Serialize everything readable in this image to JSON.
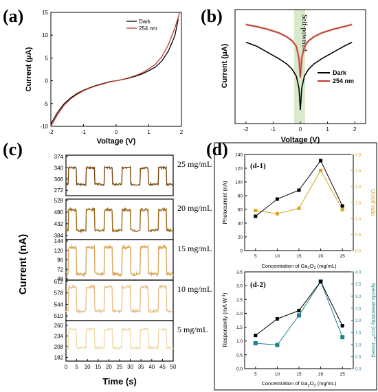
{
  "panels": {
    "a": {
      "label": "(a)",
      "xlabel": "Voltage (V)",
      "ylabel": "Current (μA)",
      "legend": [
        "Dark",
        "254 nm"
      ]
    },
    "b": {
      "label": "(b)",
      "xlabel": "Voltage (V)",
      "ylabel": "Current (μA)",
      "legend": [
        "Dark",
        "254 nm"
      ],
      "annotation": "Self-powered"
    },
    "c": {
      "label": "(c)",
      "xlabel": "Time (s)",
      "ylabel": "Current (nA)"
    },
    "d": {
      "label": "(d)"
    },
    "d1": {
      "label": "(d-1)",
      "ylabel_left": "Photocurrent (nA)",
      "ylabel_right": "On/off ratio",
      "xlabel_a": "Concentration of Ga",
      "xlabel_sub1": "2",
      "xlabel_b": "O",
      "xlabel_sub2": "3",
      "xlabel_c": " (mg/mL)"
    },
    "d2": {
      "label": "(d-2)",
      "ylabel_left_a": "Responsivity (mA W",
      "ylabel_left_sup": "-1",
      "ylabel_left_b": ")",
      "ylabel_right_a": "Specific detectivity (x10",
      "ylabel_right_sup": "10",
      "ylabel_right_b": " Jones)",
      "xlabel_a": "Concentration of Ga",
      "xlabel_sub1": "2",
      "xlabel_b": "O",
      "xlabel_sub2": "3",
      "xlabel_c": " (mg/mL)"
    }
  },
  "colors": {
    "dark": "#000000",
    "uv": "#c0392b",
    "onoff": "#d9a521",
    "detectivity": "#1e7f8f",
    "band": "#cfe3bf"
  },
  "chart_data": [
    {
      "panel": "(a)",
      "type": "line",
      "xlabel": "Voltage (V)",
      "ylabel": "Current (μA)",
      "xlim": [
        -2,
        2
      ],
      "ylim": [
        -10,
        15
      ],
      "xticks": [
        "-2",
        "-1",
        "0",
        "1",
        "2"
      ],
      "yticks": [
        "-10",
        "-5",
        "0",
        "5",
        "10",
        "15"
      ],
      "series": [
        {
          "name": "Dark",
          "x": [
            -2,
            -1.8,
            -1.6,
            -1.4,
            -1.2,
            -1,
            -0.8,
            -0.6,
            -0.4,
            -0.2,
            0,
            0.2,
            0.4,
            0.6,
            0.8,
            1,
            1.2,
            1.4,
            1.6,
            1.8,
            1.9
          ],
          "y": [
            -9.5,
            -7.0,
            -5.1,
            -3.8,
            -2.8,
            -2.1,
            -1.5,
            -1.0,
            -0.6,
            -0.2,
            0,
            0.25,
            0.6,
            1.0,
            1.5,
            2.2,
            3.0,
            4.3,
            6.5,
            9.9,
            13.5
          ]
        },
        {
          "name": "254 nm",
          "x": [
            -2,
            -1.8,
            -1.6,
            -1.4,
            -1.2,
            -1,
            -0.8,
            -0.6,
            -0.4,
            -0.2,
            0,
            0.2,
            0.4,
            0.6,
            0.8,
            1,
            1.2,
            1.4,
            1.6,
            1.8,
            1.95
          ],
          "y": [
            -10,
            -7.5,
            -5.4,
            -4.0,
            -3.0,
            -2.2,
            -1.6,
            -1.1,
            -0.7,
            -0.25,
            0,
            0.3,
            0.7,
            1.15,
            1.75,
            2.6,
            3.6,
            5.3,
            7.9,
            11.6,
            15
          ]
        }
      ]
    },
    {
      "panel": "(b)",
      "type": "line",
      "xlabel": "Voltage (V)",
      "ylabel": "Current (μA)",
      "yscale": "log",
      "xlim": [
        -2.4,
        2.4
      ],
      "xticks": [
        "-2",
        "-1",
        "0",
        "1",
        "2"
      ],
      "annotation": "Self-powered",
      "series": [
        {
          "name": "Dark",
          "x": [
            -2,
            -1.6,
            -1.2,
            -0.8,
            -0.5,
            -0.3,
            -0.15,
            -0.05,
            0,
            0.05,
            0.15,
            0.3,
            0.5,
            0.8,
            1.2,
            1.6,
            1.9
          ],
          "y": [
            -2.0,
            -2.3,
            -2.75,
            -3.2,
            -3.6,
            -4.0,
            -4.5,
            -5.4,
            -7.0,
            -5.4,
            -4.5,
            -4.0,
            -3.6,
            -3.2,
            -2.75,
            -2.3,
            -2.0
          ]
        },
        {
          "name": "254 nm",
          "x": [
            -2,
            -1.6,
            -1.2,
            -0.8,
            -0.5,
            -0.3,
            -0.15,
            -0.05,
            0,
            0.05,
            0.15,
            0.3,
            0.5,
            0.8,
            1.2,
            1.6,
            1.9
          ],
          "y": [
            -0.7,
            -0.85,
            -1.05,
            -1.3,
            -1.6,
            -1.9,
            -2.3,
            -3.2,
            -4.6,
            -3.2,
            -2.3,
            -1.9,
            -1.6,
            -1.3,
            -1.05,
            -0.85,
            -0.7
          ]
        }
      ]
    },
    {
      "panel": "(c)",
      "type": "line",
      "xlabel": "Time (s)",
      "ylabel": "Current (nA)",
      "xlim": [
        0,
        50
      ],
      "xticks": [
        "0",
        "5",
        "10",
        "15",
        "20",
        "25",
        "30",
        "35",
        "40",
        "45",
        "50"
      ],
      "strips": [
        {
          "name": "25 mg/mL",
          "ylim": [
            260,
            374
          ],
          "yticks": [
            "272",
            "306",
            "340",
            "374"
          ],
          "low": 290,
          "high": 340,
          "color": "#7a4a12"
        },
        {
          "name": "20 mg/mL",
          "ylim": [
            372,
            528
          ],
          "yticks": [
            "384",
            "432",
            "480",
            "528"
          ],
          "low": 404,
          "high": 490,
          "color": "#9a6a1c"
        },
        {
          "name": "15 mg/mL",
          "ylim": [
            48,
            144
          ],
          "yticks": [
            "48",
            "72",
            "96",
            "120",
            "144"
          ],
          "low": 60,
          "high": 128,
          "color": "#dca85e"
        },
        {
          "name": "10 mg/mL",
          "ylim": [
            500,
            612
          ],
          "yticks": [
            "510",
            "544",
            "578",
            "612"
          ],
          "low": 524,
          "high": 596,
          "color": "#e8c089"
        },
        {
          "name": "5 mg/mL",
          "ylim": [
            176,
            268
          ],
          "yticks": [
            "182",
            "208",
            "234",
            "260"
          ],
          "low": 205,
          "high": 250,
          "color": "#f0dcac"
        }
      ]
    },
    {
      "panel": "(d-1)",
      "type": "line",
      "categories": [
        "5",
        "10",
        "15",
        "20",
        "25"
      ],
      "ylabel_left": "Photocurrent (nA)",
      "ylim_left": [
        0,
        140
      ],
      "yticks_left": [
        "0",
        "20",
        "40",
        "60",
        "80",
        "100",
        "120",
        "140"
      ],
      "ylabel_right": "On/off ratio",
      "ylim_right": [
        0,
        3.0
      ],
      "yticks_right": [
        "0.0",
        "0.5",
        "1.0",
        "1.5",
        "2.0",
        "2.5",
        "3.0"
      ],
      "series": [
        {
          "axis": "left",
          "values": [
            50,
            75,
            88,
            131,
            65
          ]
        },
        {
          "axis": "right",
          "values": [
            1.25,
            1.15,
            1.32,
            2.5,
            1.28
          ]
        }
      ]
    },
    {
      "panel": "(d-2)",
      "type": "line",
      "categories": [
        "5",
        "10",
        "15",
        "20",
        "25"
      ],
      "ylabel_left": "Responsivity (mA W-1)",
      "ylim_left": [
        0,
        3.5
      ],
      "yticks_left": [
        "0.0",
        "0.5",
        "1.0",
        "1.5",
        "2.0",
        "2.5",
        "3.0",
        "3.5"
      ],
      "ylabel_right": "Specific detectivity (x10^10 Jones)",
      "ylim_right": [
        0,
        4.0
      ],
      "yticks_right": [
        "0.0",
        "0.5",
        "1.0",
        "1.5",
        "2.0",
        "2.5",
        "3.0",
        "3.5",
        "4.0"
      ],
      "series": [
        {
          "axis": "left",
          "values": [
            1.2,
            1.8,
            2.1,
            3.15,
            1.55
          ]
        },
        {
          "axis": "right",
          "values": [
            1.05,
            0.98,
            2.2,
            3.6,
            1.3
          ]
        }
      ]
    }
  ]
}
